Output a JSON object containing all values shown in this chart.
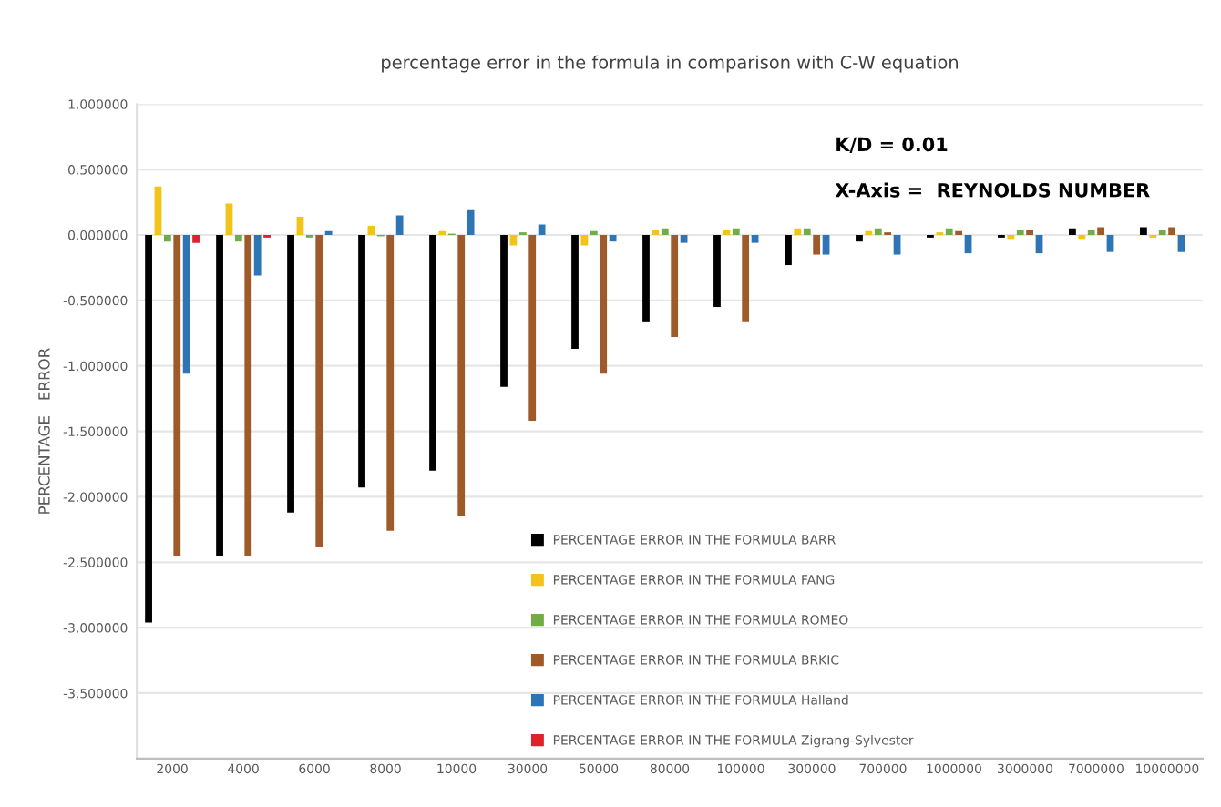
{
  "chart_data": {
    "type": "bar",
    "title": "percentage error in the formula in comparison with C-W equation",
    "ylabel": "PERCENTAGE   ERROR",
    "annotations": [
      "K/D = 0.01",
      "X-Axis =  REYNOLDS NUMBER"
    ],
    "categories": [
      "2000",
      "4000",
      "6000",
      "8000",
      "10000",
      "30000",
      "50000",
      "80000",
      "100000",
      "300000",
      "700000",
      "1000000",
      "3000000",
      "7000000",
      "10000000"
    ],
    "series": [
      {
        "name": "PERCENTAGE ERROR IN THE FORMULA BARR",
        "color": "#000000",
        "values": [
          -2.96,
          -2.45,
          -2.12,
          -1.93,
          -1.8,
          -1.16,
          -0.87,
          -0.66,
          -0.55,
          -0.23,
          -0.05,
          -0.02,
          -0.02,
          0.05,
          0.06
        ]
      },
      {
        "name": "PERCENTAGE ERROR IN THE FORMULA FANG",
        "color": "#f2c318",
        "values": [
          0.37,
          0.24,
          0.14,
          0.07,
          0.03,
          -0.08,
          -0.08,
          0.04,
          0.04,
          0.05,
          0.03,
          0.02,
          -0.03,
          -0.03,
          -0.02
        ]
      },
      {
        "name": "PERCENTAGE ERROR IN THE FORMULA ROMEO",
        "color": "#70ad47",
        "values": [
          -0.05,
          -0.05,
          -0.02,
          -0.01,
          0.01,
          0.02,
          0.03,
          0.05,
          0.05,
          0.05,
          0.05,
          0.05,
          0.04,
          0.04,
          0.04
        ]
      },
      {
        "name": "PERCENTAGE ERROR IN THE FORMULA BRKIC",
        "color": "#9e5a28",
        "values": [
          -2.45,
          -2.45,
          -2.38,
          -2.26,
          -2.15,
          -1.42,
          -1.06,
          -0.78,
          -0.66,
          -0.15,
          0.02,
          0.03,
          0.04,
          0.06,
          0.06
        ]
      },
      {
        "name": "PERCENTAGE ERROR IN THE FORMULA Halland",
        "color": "#2e75b6",
        "values": [
          -1.06,
          -0.31,
          0.03,
          0.15,
          0.19,
          0.08,
          -0.05,
          -0.06,
          -0.06,
          -0.15,
          -0.15,
          -0.14,
          -0.14,
          -0.13,
          -0.13
        ]
      },
      {
        "name": "PERCENTAGE ERROR IN THE FORMULA Zigrang-Sylvester",
        "color": "#e0202a",
        "values": [
          -0.06,
          -0.02,
          0,
          0,
          0,
          0,
          0,
          0,
          0,
          0,
          0,
          0,
          0,
          0,
          0
        ]
      }
    ],
    "ylim": [
      -4,
      1
    ],
    "yticks": [
      {
        "value": 1,
        "label": "1.000000"
      },
      {
        "value": 0.5,
        "label": "0.500000"
      },
      {
        "value": 0,
        "label": "0.000000"
      },
      {
        "value": -0.5,
        "label": "-0.500000"
      },
      {
        "value": -1,
        "label": "-1.000000"
      },
      {
        "value": -1.5,
        "label": "-1.500000"
      },
      {
        "value": -2,
        "label": "-2.000000"
      },
      {
        "value": -2.5,
        "label": "-2.500000"
      },
      {
        "value": -3,
        "label": "-3.000000"
      },
      {
        "value": -3.5,
        "label": "-3.500000"
      }
    ],
    "grid": "y",
    "legend": "bottom"
  }
}
